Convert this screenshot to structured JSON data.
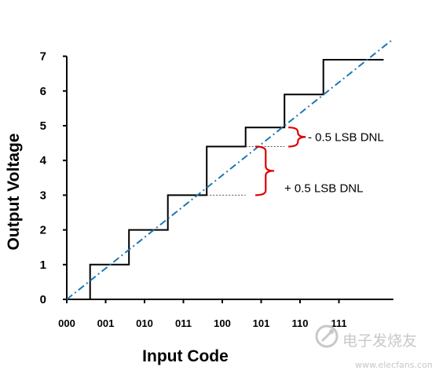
{
  "chart_data": {
    "type": "line",
    "xlabel": "Input Code",
    "ylabel": "Output Voltage",
    "x_ticks": [
      "000",
      "001",
      "010",
      "011",
      "100",
      "101",
      "110",
      "111"
    ],
    "y_ticks": [
      "0",
      "1",
      "2",
      "3",
      "4",
      "5",
      "6",
      "7"
    ],
    "xlim": [
      0,
      8.4
    ],
    "ylim": [
      0,
      7
    ],
    "grid": false,
    "series": [
      {
        "style": "staircase",
        "color": "#000000",
        "transitions": [
          0.6,
          1.6,
          2.6,
          3.6,
          4.6,
          5.6,
          6.6
        ],
        "levels": [
          0,
          1.0,
          2.0,
          3.0,
          4.4,
          4.95,
          5.9,
          6.9
        ],
        "end_x": 8.15
      },
      {
        "style": "dash-dot",
        "color": "#1f77b4",
        "x": [
          0,
          8.4
        ],
        "y": [
          0,
          7.5
        ]
      }
    ],
    "annotations": [
      {
        "text": "- 0.5 LSB DNL",
        "y_range": [
          4.4,
          4.95
        ],
        "dotted_ref_level": 4.4,
        "bracket_color": "#e00000"
      },
      {
        "text": "+ 0.5 LSB DNL",
        "y_range": [
          3.0,
          4.4
        ],
        "dotted_ref_level": 3.0,
        "bracket_color": "#e00000"
      }
    ]
  },
  "watermark": {
    "text": "电子发烧友",
    "url": "www.elecfans.com"
  }
}
